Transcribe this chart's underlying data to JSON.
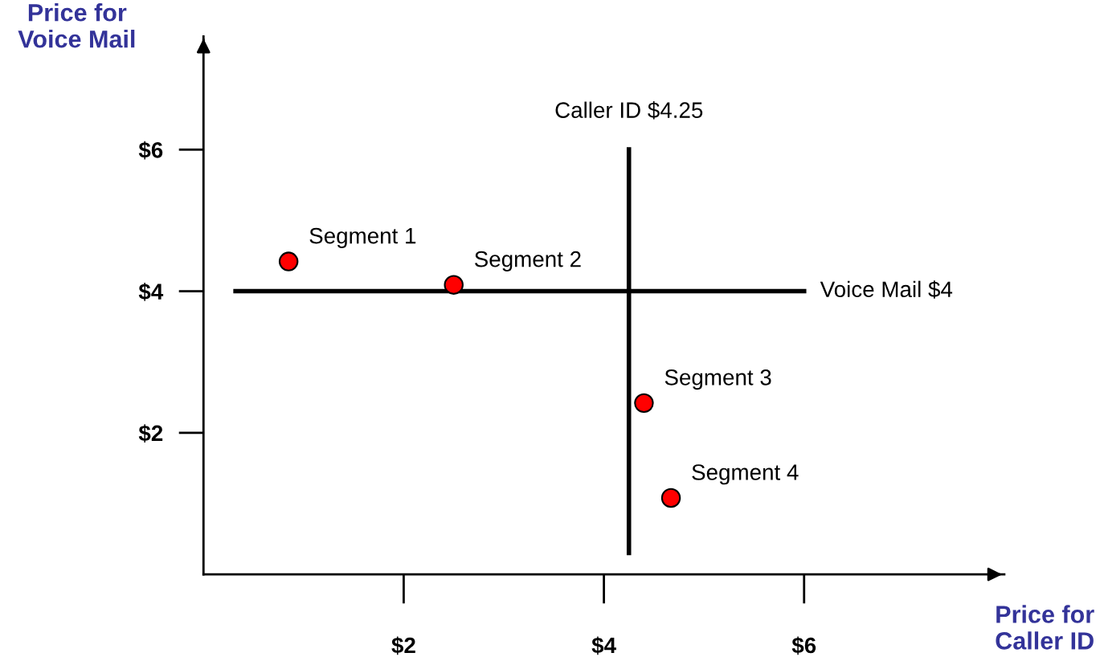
{
  "chart_data": {
    "type": "scatter",
    "xlabel": "Price for\nCaller ID",
    "ylabel": "Price for\nVoice Mail",
    "series": [
      {
        "color": "#ff0000",
        "x": [
          0.85,
          2.5,
          4.4,
          4.67
        ],
        "values": [
          4.42,
          4.09,
          2.42,
          1.08
        ]
      }
    ],
    "marker": "circle",
    "annotations": [
      {
        "text": "Segment 1",
        "x": 0.85,
        "y": 4.42
      },
      {
        "text": "Segment 2",
        "x": 2.5,
        "y": 4.09
      },
      {
        "text": "Segment 3",
        "x": 4.4,
        "y": 2.42
      },
      {
        "text": "Segment 4",
        "x": 4.67,
        "y": 1.08
      }
    ],
    "ref_lines": [
      {
        "axis": "x",
        "value": 4.25,
        "label": "Caller ID $4.25",
        "color": "#000000"
      },
      {
        "axis": "y",
        "value": 4,
        "label": "Voice Mail $4",
        "color": "#000000"
      }
    ],
    "xlim": [
      0,
      8
    ],
    "ylim": [
      0,
      7.6
    ],
    "xticks": [
      {
        "value": 2,
        "label": "$2"
      },
      {
        "value": 4,
        "label": "$4"
      },
      {
        "value": 6,
        "label": "$6"
      }
    ],
    "yticks": [
      {
        "value": 2,
        "label": "$2"
      },
      {
        "value": 4,
        "label": "$4"
      },
      {
        "value": 6,
        "label": "$6"
      }
    ],
    "grid": false,
    "legend": false
  }
}
